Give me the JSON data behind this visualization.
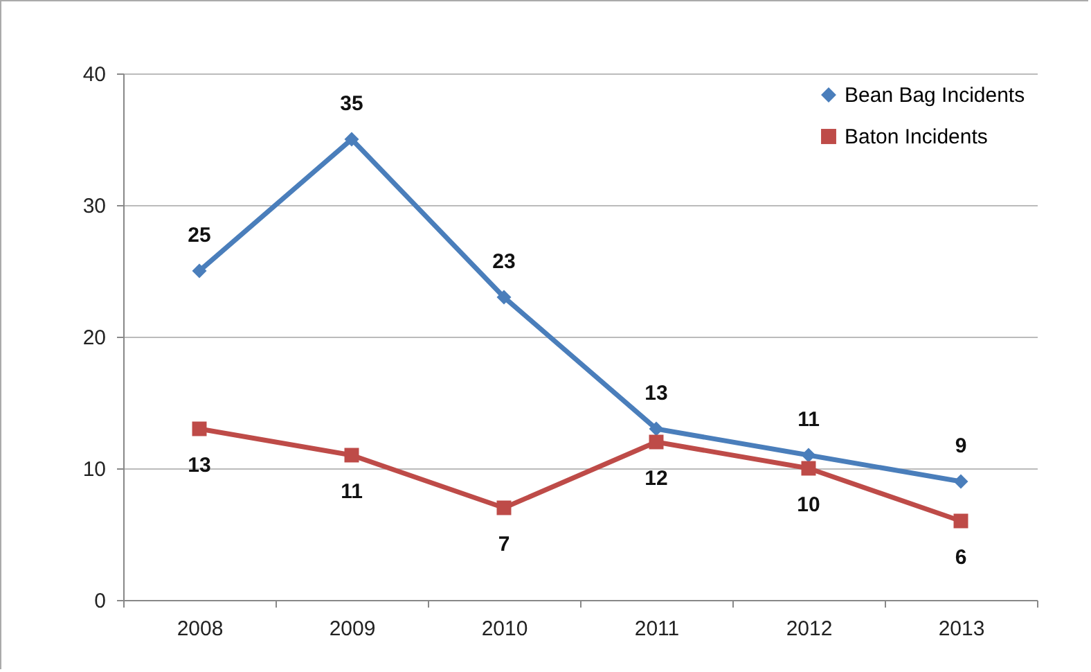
{
  "chart_data": {
    "type": "line",
    "categories": [
      "2008",
      "2009",
      "2010",
      "2011",
      "2012",
      "2013"
    ],
    "series": [
      {
        "name": "Bean Bag Incidents",
        "color": "#4a7ebb",
        "marker": "diamond",
        "values": [
          25,
          35,
          23,
          13,
          11,
          9
        ]
      },
      {
        "name": "Baton Incidents",
        "color": "#be4b48",
        "marker": "square",
        "values": [
          13,
          11,
          7,
          12,
          10,
          6
        ]
      }
    ],
    "ylim": [
      0,
      40
    ],
    "yticks": [
      0,
      10,
      20,
      30,
      40
    ],
    "grid": "y",
    "legend": "top right",
    "data_labels": true
  }
}
